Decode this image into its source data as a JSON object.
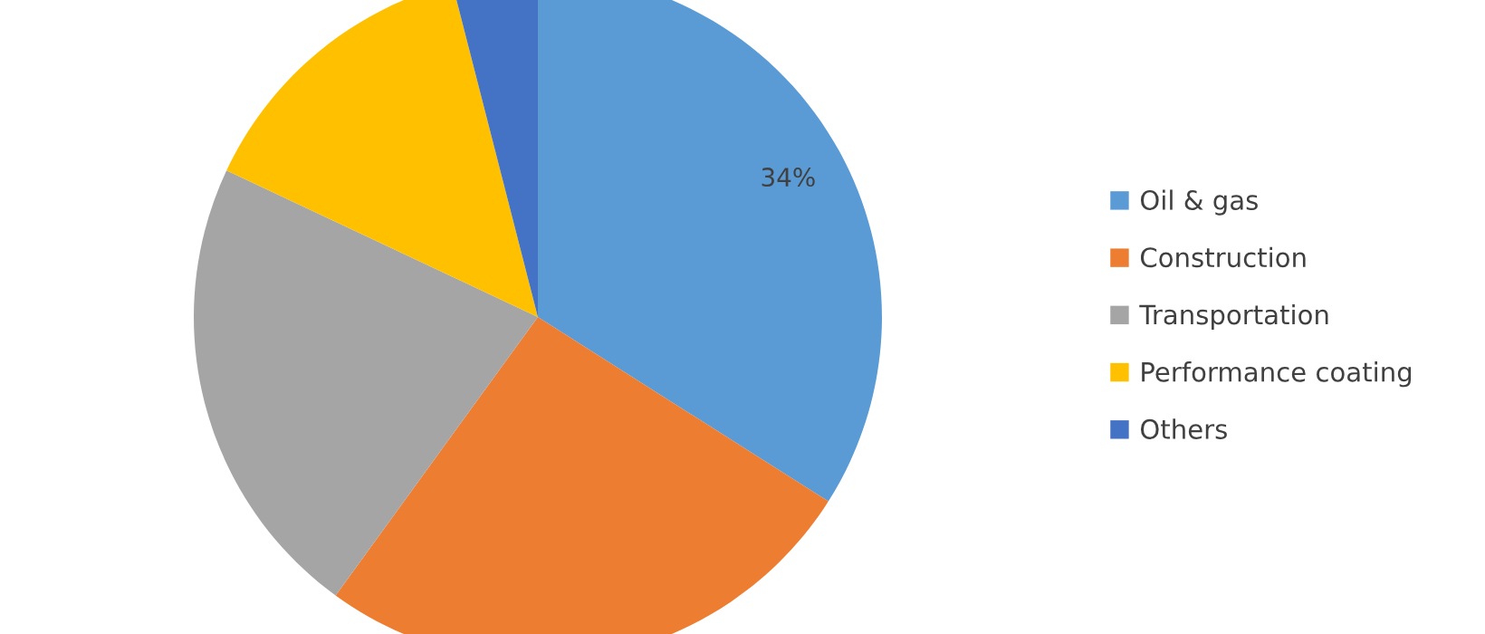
{
  "chart_data": {
    "type": "pie",
    "categories": [
      "Oil & gas",
      "Construction",
      "Transportation",
      "Performance coating",
      "Others"
    ],
    "values": [
      34,
      26,
      22,
      14,
      4
    ],
    "colors": [
      "#5b9bd5",
      "#ed7d31",
      "#a5a5a5",
      "#ffc000",
      "#4472c4"
    ],
    "value_labels": [
      "34%",
      null,
      null,
      null,
      null
    ],
    "legend": "right"
  }
}
